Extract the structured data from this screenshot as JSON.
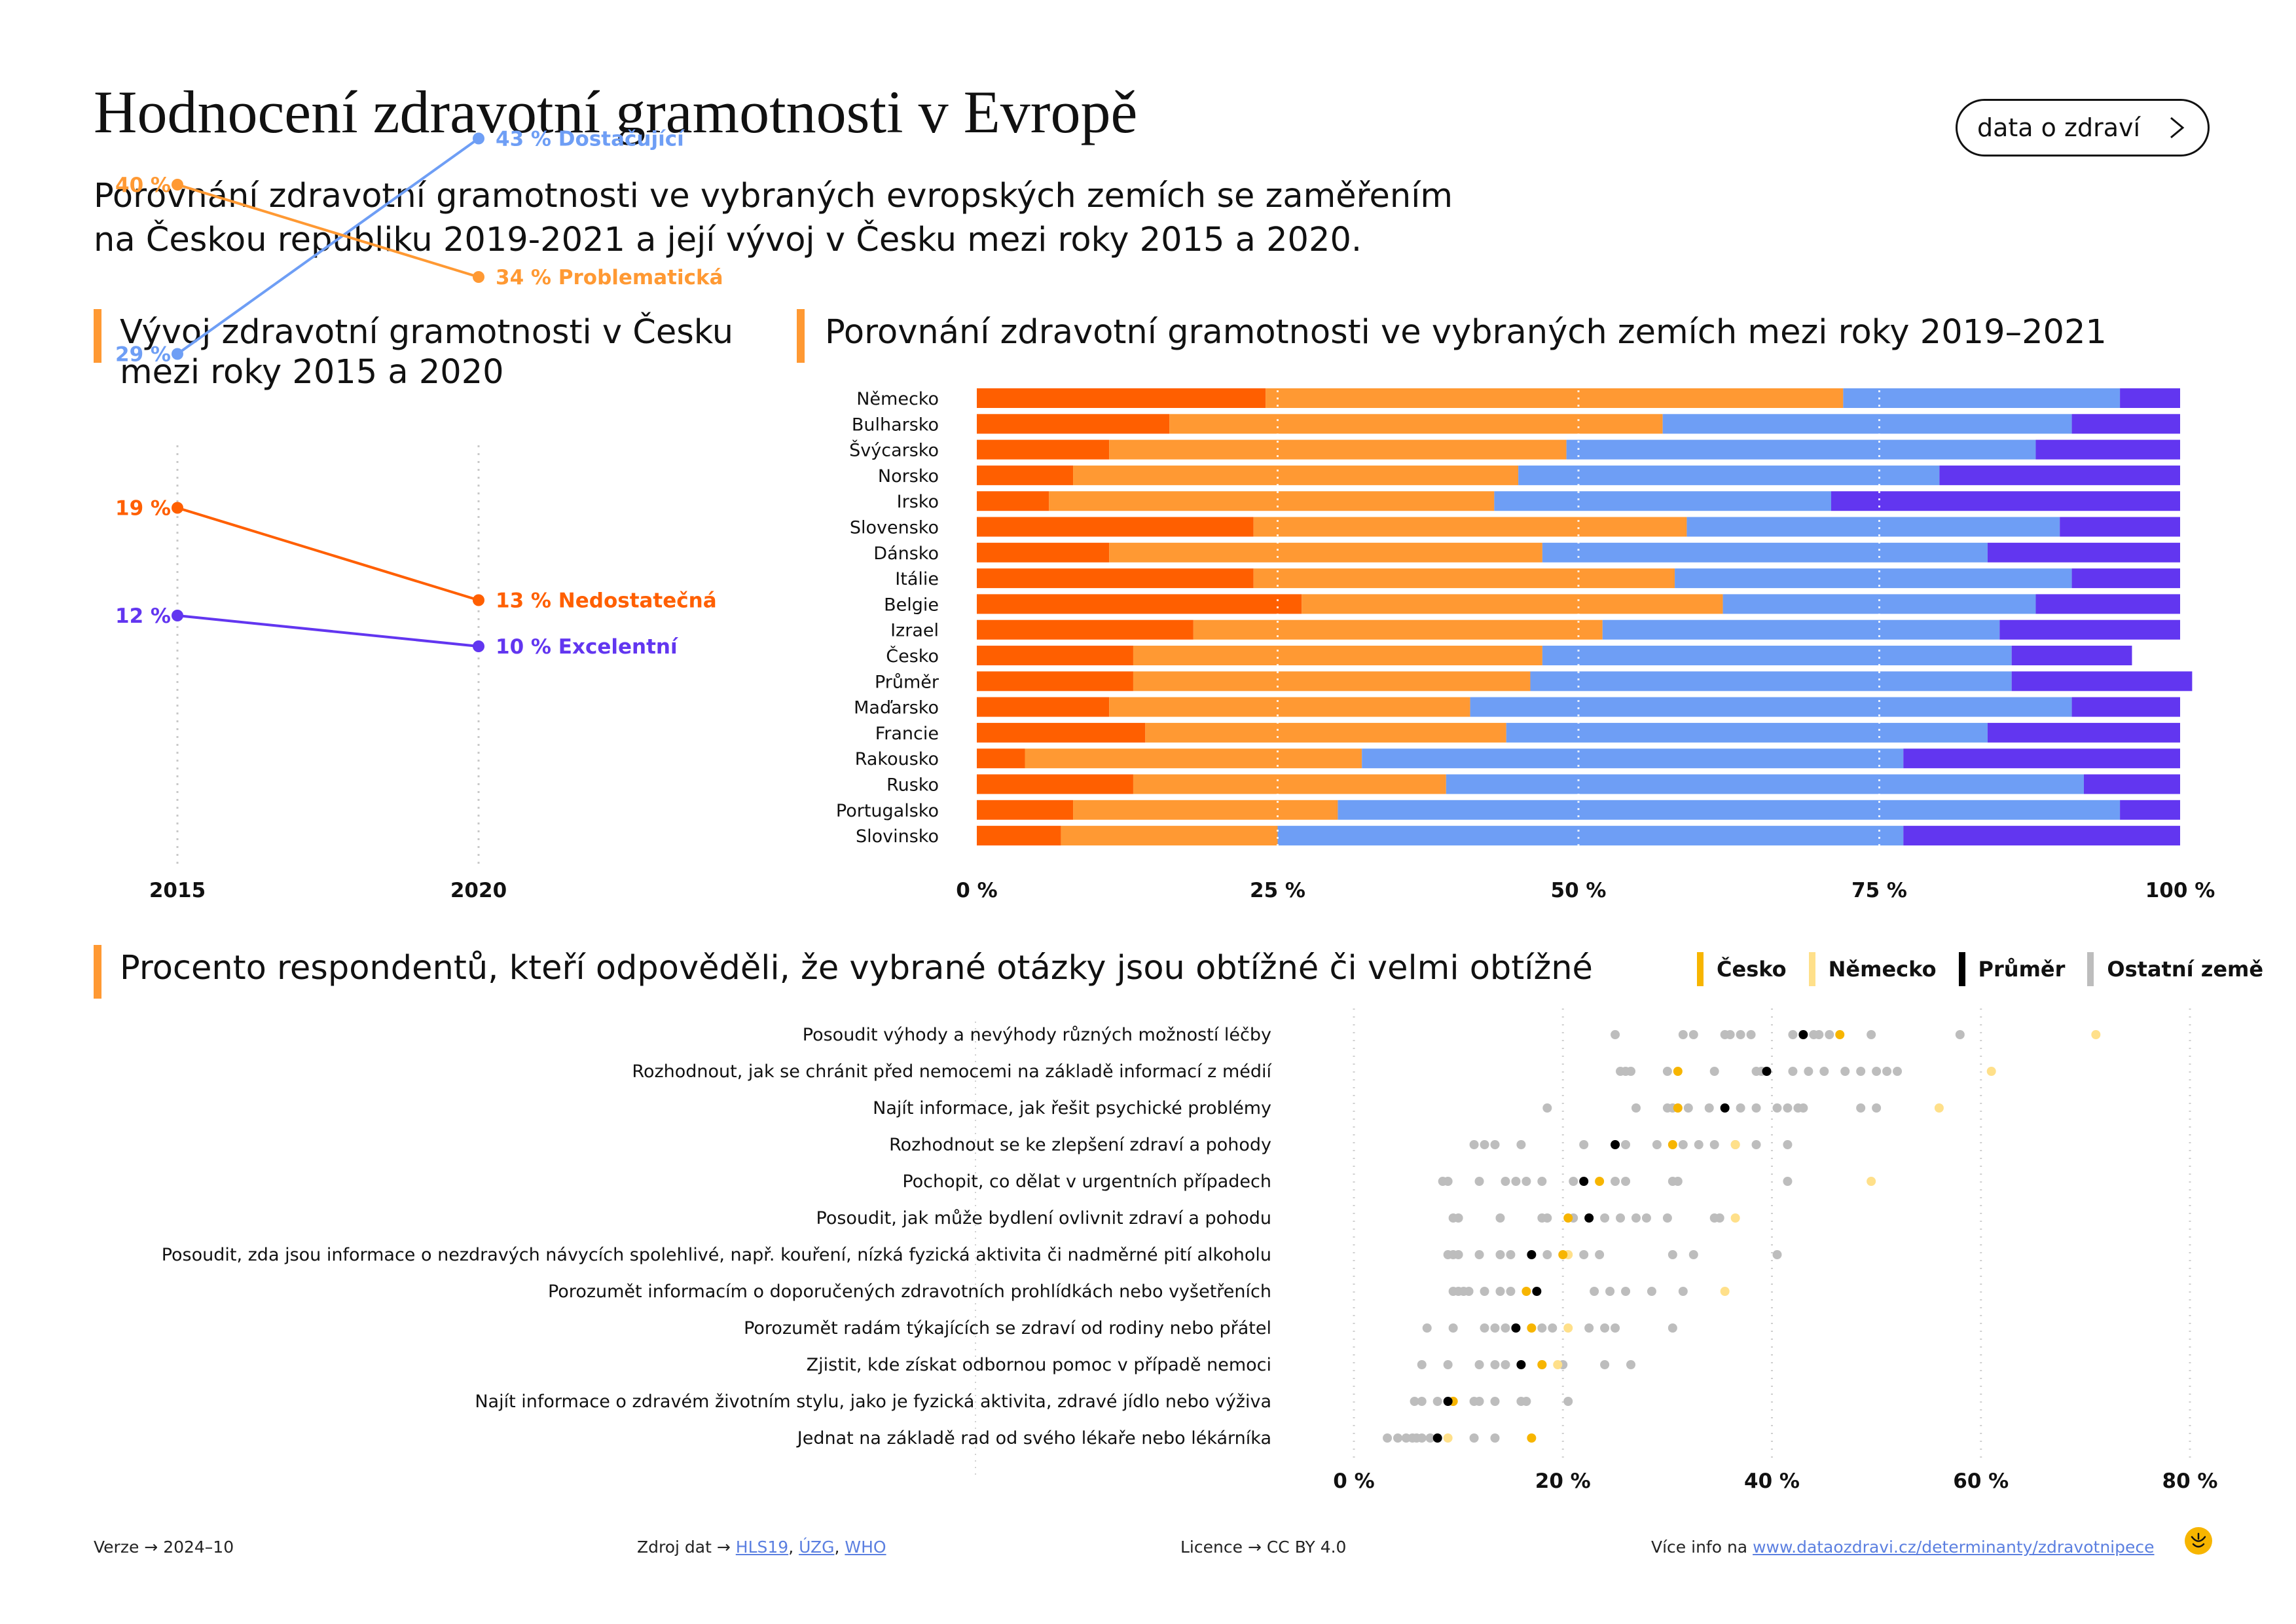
{
  "header": {
    "title": "Hodnocení zdravotní gramotnosti v Evropě",
    "subtitle_line1": "Porovnání zdravotní gramotnosti ve vybraných evropských zemích se zaměřením",
    "subtitle_line2": "na Českou republiku 2019-2021 a její vývoj v Česku mezi roky 2015 a 2020.",
    "nav_button": "data o zdraví"
  },
  "colors": {
    "nedostatecna": "#ff5f00",
    "problematicka": "#ff9933",
    "dostacujici": "#6e9ef5",
    "excelentni": "#6236f0",
    "cesko": "#f7b500",
    "nemecko": "#ffe08a",
    "prumer": "#000000",
    "ostatni": "#bdbdbd"
  },
  "slope": {
    "title_line1": "Vývoj zdravotní gramotnosti v Česku",
    "title_line2": "mezi roky 2015 a 2020"
  },
  "stack": {
    "title": "Porovnání zdravotní gramotnosti ve vybraných zemích mezi roky 2019–2021"
  },
  "dots": {
    "title": "Procento respondentů, kteří odpověděli, že vybrané otázky jsou obtížné či velmi obtížné",
    "legend": [
      "Česko",
      "Německo",
      "Průměr",
      "Ostatní země"
    ]
  },
  "chart_data": [
    {
      "type": "line",
      "x": [
        "2015",
        "2020"
      ],
      "series": [
        {
          "name": "Dostačující",
          "values": [
            29,
            43
          ],
          "labels": [
            "29 %",
            "43 % Dostačující"
          ]
        },
        {
          "name": "Problematická",
          "values": [
            40,
            34
          ],
          "labels": [
            "40 %",
            "34 % Problematická"
          ]
        },
        {
          "name": "Nedostatečná",
          "values": [
            19,
            13
          ],
          "labels": [
            "19 %",
            "13 % Nedostatečná"
          ]
        },
        {
          "name": "Excelentní",
          "values": [
            12,
            10
          ],
          "labels": [
            "12 %",
            "10 % Excelentní"
          ]
        }
      ]
    },
    {
      "type": "bar",
      "categories": [
        "Německo",
        "Bulharsko",
        "Švýcarsko",
        "Norsko",
        "Irsko",
        "Slovensko",
        "Dánsko",
        "Itálie",
        "Belgie",
        "Izrael",
        "Česko",
        "Průměr",
        "Maďarsko",
        "Francie",
        "Rakousko",
        "Rusko",
        "Portugalsko",
        "Slovinsko"
      ],
      "series": [
        {
          "name": "Nedostatečná",
          "values": [
            24,
            16,
            11,
            8,
            6,
            23,
            11,
            23,
            27,
            18,
            13,
            13,
            11,
            14,
            4,
            13,
            8,
            7
          ]
        },
        {
          "name": "Problematická",
          "values": [
            48,
            41,
            38,
            37,
            37,
            36,
            36,
            35,
            35,
            34,
            34,
            33,
            30,
            30,
            28,
            26,
            22,
            18
          ]
        },
        {
          "name": "Dostačující",
          "values": [
            23,
            34,
            39,
            35,
            28,
            31,
            37,
            33,
            26,
            33,
            39,
            40,
            50,
            40,
            45,
            53,
            65,
            52
          ]
        },
        {
          "name": "Excelentní",
          "values": [
            5,
            9,
            12,
            20,
            29,
            10,
            16,
            9,
            12,
            15,
            10,
            15,
            9,
            16,
            23,
            8,
            5,
            23
          ]
        }
      ],
      "xticks": [
        "0 %",
        "25 %",
        "50 %",
        "75 %",
        "100 %"
      ],
      "xlim": [
        0,
        100
      ],
      "stacked": true,
      "grid": true
    },
    {
      "type": "scatter",
      "categories": [
        "Posoudit výhody a nevýhody různých možností léčby",
        "Rozhodnout, jak se chránit před nemocemi na základě informací z médií",
        "Najít informace, jak řešit psychické problémy",
        "Rozhodnout se ke zlepšení zdraví a pohody",
        "Pochopit, co dělat v urgentních případech",
        "Posoudit, jak může bydlení ovlivnit zdraví a pohodu",
        "Posoudit, zda jsou informace o nezdravých návycích spolehlivé, např. kouření, nízká fyzická aktivita či nadměrné pití alkoholu",
        "Porozumět informacím o doporučených zdravotních prohlídkách nebo vyšetřeních",
        "Porozumět radám týkajících se zdraví od rodiny nebo přátel",
        "Zjistit, kde získat odbornou pomoc v případě nemoci",
        "Najít informace o zdravém životním stylu, jako je fyzická aktivita, zdravé jídlo nebo výživa",
        "Jednat na základě rad od svého lékaře nebo lékárníka"
      ],
      "series": [
        {
          "name": "Česko",
          "values": [
            46.5,
            31,
            31,
            30.5,
            23.5,
            20.5,
            20,
            16.5,
            17,
            18,
            9.5,
            17
          ]
        },
        {
          "name": "Německo",
          "values": [
            71,
            61,
            56,
            36.5,
            49.5,
            36.5,
            20.5,
            35.5,
            20.5,
            19.5,
            9.5,
            9
          ]
        },
        {
          "name": "Průměr",
          "values": [
            43,
            39.5,
            35.5,
            25,
            22,
            22.5,
            17,
            17.5,
            15.5,
            16,
            9,
            8
          ]
        },
        {
          "name": "Ostatní země",
          "values": [
            [
              25,
              31.5,
              32.5,
              35.5,
              36,
              37,
              38,
              42,
              44,
              44.5,
              45.5,
              49.5,
              58
            ],
            [
              25.5,
              26,
              26.5,
              30,
              34.5,
              38.5,
              39,
              42,
              43.5,
              45,
              47,
              48.5,
              50,
              51,
              52
            ],
            [
              18.5,
              27,
              30,
              30.5,
              32,
              34,
              37,
              38.5,
              40.5,
              41.5,
              42.5,
              43,
              48.5,
              50
            ],
            [
              11.5,
              12.5,
              13.5,
              16,
              22,
              26,
              29,
              31.5,
              33,
              34.5,
              36.5,
              38.5,
              41.5
            ],
            [
              8.5,
              9,
              12,
              14.5,
              15.5,
              16.5,
              18,
              21,
              25,
              26,
              30.5,
              31,
              41.5
            ],
            [
              9.5,
              10,
              14,
              18,
              18.5,
              21,
              24,
              25.5,
              27,
              28,
              30,
              34.5,
              35
            ],
            [
              9,
              9.5,
              10,
              12,
              14,
              15,
              18.5,
              22,
              23.5,
              30.5,
              32.5,
              40.5
            ],
            [
              9.5,
              10,
              10.5,
              11,
              12.5,
              14,
              15,
              23,
              24.5,
              26,
              28.5,
              31.5
            ],
            [
              7,
              9.5,
              12.5,
              13.5,
              14.5,
              18,
              19,
              22.5,
              24,
              25,
              30.5
            ],
            [
              6.5,
              9,
              12,
              13.5,
              14.5,
              18,
              20,
              24,
              26.5
            ],
            [
              5.8,
              6.5,
              8,
              11.5,
              12,
              13.5,
              16,
              16.5,
              20.5
            ],
            [
              3.2,
              4.2,
              5,
              5.6,
              6,
              6.5,
              7.3,
              11.5,
              13.5
            ]
          ]
        }
      ],
      "xticks": [
        "0 %",
        "20 %",
        "40 %",
        "60 %",
        "80 %"
      ],
      "xlim": [
        0,
        80
      ],
      "grid": true
    }
  ],
  "footer": {
    "version_label": "Verze",
    "version_value": "2024–10",
    "source_label": "Zdroj dat",
    "source_links": [
      "HLS19",
      "ÚZG",
      "WHO"
    ],
    "license_label": "Licence",
    "license_value": "CC BY 4.0",
    "more_label": "Více info na",
    "more_url": "www.dataozdravi.cz/determinanty/zdravotnipece"
  }
}
